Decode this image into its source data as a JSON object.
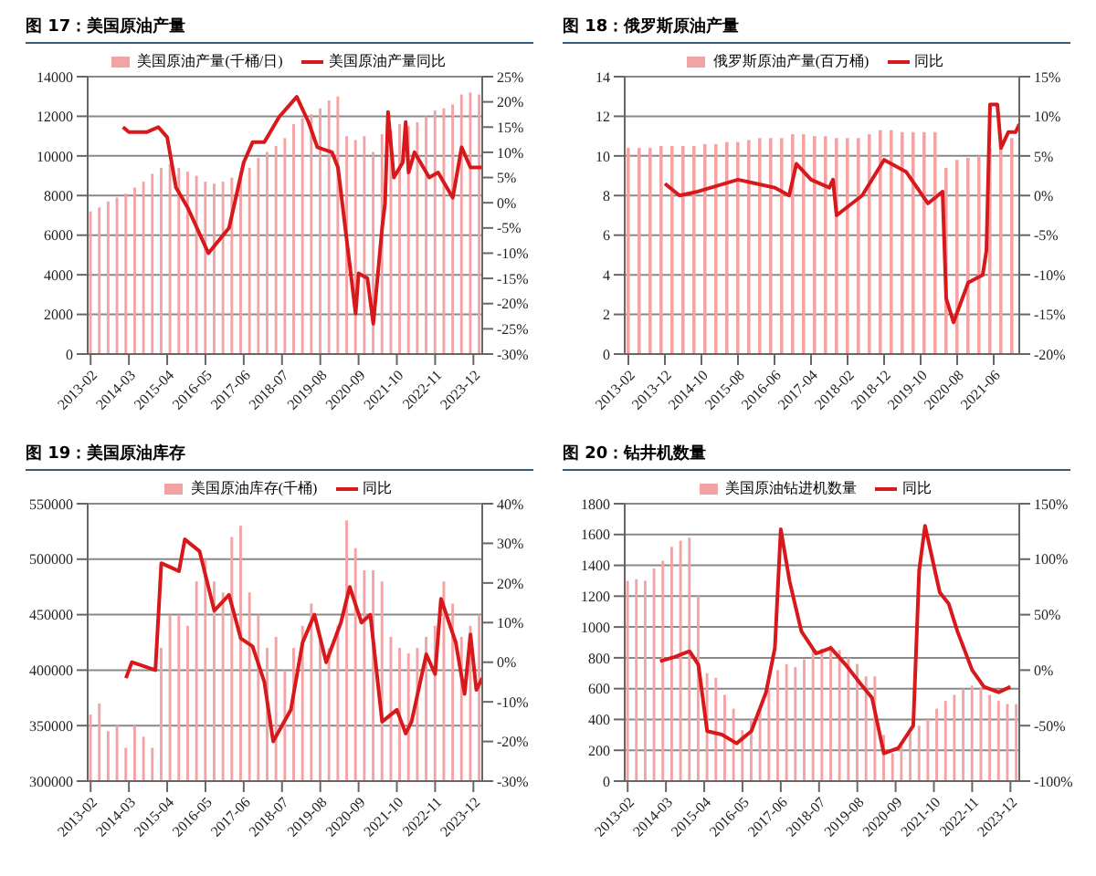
{
  "chart_data": [
    {
      "type": "bar",
      "title": "图 17：美国原油产量",
      "legend": "top",
      "grid": "y",
      "marker": "none",
      "line_style": "solid",
      "xlim": [
        "2013-01",
        "2024-03"
      ],
      "xticks": [
        "2013-02",
        "2014-03",
        "2015-04",
        "2016-05",
        "2017-06",
        "2018-07",
        "2019-08",
        "2020-09",
        "2021-10",
        "2022-11",
        "2023-12"
      ],
      "ylim": [
        0,
        14000
      ],
      "yticks": [
        0,
        2000,
        4000,
        6000,
        8000,
        10000,
        12000,
        14000
      ],
      "y2lim": [
        -30,
        25
      ],
      "y2ticks": [
        {
          "value": -30,
          "label": "-30%"
        },
        {
          "value": -25,
          "label": "-25%"
        },
        {
          "value": -20,
          "label": "-20%"
        },
        {
          "value": -15,
          "label": "-15%"
        },
        {
          "value": -10,
          "label": "-10%"
        },
        {
          "value": -5,
          "label": "-5%"
        },
        {
          "value": 0,
          "label": "0%"
        },
        {
          "value": 5,
          "label": "5%"
        },
        {
          "value": 10,
          "label": "10%"
        },
        {
          "value": 15,
          "label": "15%"
        },
        {
          "value": 20,
          "label": "20%"
        },
        {
          "value": 25,
          "label": "25%"
        }
      ],
      "series": [
        {
          "name": "美国原油产量(千桶/日)",
          "color": "#f4a3a5",
          "x": [
            "2013-02",
            "2013-05",
            "2013-08",
            "2013-11",
            "2014-02",
            "2014-05",
            "2014-08",
            "2014-11",
            "2015-02",
            "2015-05",
            "2015-08",
            "2015-11",
            "2016-02",
            "2016-05",
            "2016-08",
            "2016-11",
            "2017-02",
            "2017-05",
            "2017-08",
            "2017-11",
            "2018-02",
            "2018-05",
            "2018-08",
            "2018-11",
            "2019-02",
            "2019-05",
            "2019-08",
            "2019-11",
            "2020-02",
            "2020-05",
            "2020-08",
            "2020-11",
            "2021-02",
            "2021-05",
            "2021-08",
            "2021-11",
            "2022-02",
            "2022-05",
            "2022-08",
            "2022-11",
            "2023-02",
            "2023-05",
            "2023-08",
            "2023-11",
            "2024-02"
          ],
          "values": [
            7200,
            7400,
            7700,
            7900,
            8100,
            8400,
            8700,
            9100,
            9400,
            9600,
            9400,
            9200,
            9000,
            8700,
            8600,
            8700,
            8900,
            9200,
            9400,
            9900,
            10200,
            10500,
            10900,
            11600,
            11900,
            12100,
            12400,
            12800,
            13000,
            11000,
            10800,
            11000,
            10200,
            11100,
            11300,
            11600,
            11500,
            11700,
            12000,
            12300,
            12400,
            12600,
            13100,
            13200,
            13100
          ]
        },
        {
          "name": "美国原油产量同比",
          "type": "line",
          "axis": "y2",
          "color": "#d7191c",
          "x": [
            "2014-01",
            "2014-03",
            "2014-09",
            "2015-01",
            "2015-04",
            "2015-07",
            "2015-11",
            "2016-06",
            "2017-01",
            "2017-06",
            "2017-09",
            "2018-01",
            "2018-06",
            "2018-12",
            "2019-04",
            "2019-07",
            "2019-12",
            "2020-02",
            "2020-08",
            "2020-09",
            "2020-12",
            "2021-02",
            "2021-05",
            "2021-06",
            "2021-07",
            "2021-09",
            "2021-12",
            "2022-01",
            "2022-02",
            "2022-04",
            "2022-09",
            "2022-12",
            "2023-05",
            "2023-08",
            "2023-11",
            "2024-03"
          ],
          "values": [
            15,
            14,
            14,
            15,
            13,
            3,
            -1,
            -10,
            -5,
            8,
            12,
            12,
            17,
            21,
            16,
            11,
            10,
            7,
            -22,
            -14,
            -15,
            -24,
            -5,
            0,
            18,
            5,
            8,
            16,
            6,
            10,
            5,
            6,
            1,
            11,
            7,
            7
          ]
        }
      ]
    },
    {
      "type": "bar",
      "title": "图 18：俄罗斯原油产量",
      "legend": "top",
      "grid": "y",
      "marker": "none",
      "line_style": "solid",
      "xlim": [
        "2013-01",
        "2022-01"
      ],
      "xticks": [
        "2013-02",
        "2013-12",
        "2014-10",
        "2015-08",
        "2016-06",
        "2017-04",
        "2018-02",
        "2018-12",
        "2019-10",
        "2020-08",
        "2021-06"
      ],
      "ylim": [
        0,
        14
      ],
      "yticks": [
        0,
        2,
        4,
        6,
        8,
        10,
        12,
        14
      ],
      "y2lim": [
        -20,
        15
      ],
      "y2ticks": [
        {
          "value": -20,
          "label": "-20%"
        },
        {
          "value": -15,
          "label": "-15%"
        },
        {
          "value": -10,
          "label": "-10%"
        },
        {
          "value": -5,
          "label": "-5%"
        },
        {
          "value": 0,
          "label": "0%"
        },
        {
          "value": 5,
          "label": "5%"
        },
        {
          "value": 10,
          "label": "10%"
        },
        {
          "value": 15,
          "label": "15%"
        }
      ],
      "series": [
        {
          "name": "俄罗斯原油产量(百万桶)",
          "color": "#f4a3a5",
          "x": [
            "2013-02",
            "2013-05",
            "2013-08",
            "2013-11",
            "2014-02",
            "2014-05",
            "2014-08",
            "2014-11",
            "2015-02",
            "2015-05",
            "2015-08",
            "2015-11",
            "2016-02",
            "2016-05",
            "2016-08",
            "2016-11",
            "2017-02",
            "2017-05",
            "2017-08",
            "2017-11",
            "2018-02",
            "2018-05",
            "2018-08",
            "2018-11",
            "2019-02",
            "2019-05",
            "2019-08",
            "2019-11",
            "2020-02",
            "2020-05",
            "2020-08",
            "2020-11",
            "2021-02",
            "2021-05",
            "2021-08",
            "2021-11"
          ],
          "values": [
            10.4,
            10.4,
            10.4,
            10.5,
            10.5,
            10.5,
            10.5,
            10.6,
            10.6,
            10.7,
            10.7,
            10.8,
            10.9,
            10.9,
            10.9,
            11.1,
            11.1,
            11.0,
            11.0,
            10.9,
            10.9,
            10.9,
            11.1,
            11.3,
            11.3,
            11.2,
            11.2,
            11.2,
            11.2,
            9.4,
            9.8,
            9.9,
            10.0,
            10.4,
            10.6,
            10.9
          ]
        },
        {
          "name": "同比",
          "type": "line",
          "axis": "y2",
          "color": "#d7191c",
          "x": [
            "2013-12",
            "2014-04",
            "2014-09",
            "2015-08",
            "2016-01",
            "2016-06",
            "2016-10",
            "2016-12",
            "2017-04",
            "2017-09",
            "2017-10",
            "2017-11",
            "2018-06",
            "2018-12",
            "2019-06",
            "2019-12",
            "2020-04",
            "2020-05",
            "2020-07",
            "2020-11",
            "2021-03",
            "2021-04",
            "2021-05",
            "2021-07",
            "2021-08",
            "2021-10",
            "2021-12",
            "2022-01"
          ],
          "values": [
            1.5,
            0,
            0.5,
            2,
            1.5,
            1,
            0,
            4,
            2,
            1,
            2,
            -2.5,
            0,
            4.5,
            3,
            -1,
            0.5,
            -13,
            -16,
            -11,
            -10,
            -7,
            11.5,
            11.5,
            6,
            8,
            8,
            9
          ]
        }
      ]
    },
    {
      "type": "bar",
      "title": "图 19：美国原油库存",
      "legend": "top",
      "grid": "y",
      "marker": "none",
      "line_style": "solid",
      "xlim": [
        "2013-01",
        "2024-03"
      ],
      "xticks": [
        "2013-02",
        "2014-03",
        "2015-04",
        "2016-05",
        "2017-06",
        "2018-07",
        "2019-08",
        "2020-09",
        "2021-10",
        "2022-11",
        "2023-12"
      ],
      "ylim": [
        300000,
        550000
      ],
      "yticks": [
        300000,
        350000,
        400000,
        450000,
        500000,
        550000
      ],
      "y2lim": [
        -30,
        40
      ],
      "y2ticks": [
        {
          "value": -30,
          "label": "-30%"
        },
        {
          "value": -20,
          "label": "-20%"
        },
        {
          "value": -10,
          "label": "-10%"
        },
        {
          "value": 0,
          "label": "0%"
        },
        {
          "value": 10,
          "label": "10%"
        },
        {
          "value": 20,
          "label": "20%"
        },
        {
          "value": 30,
          "label": "30%"
        },
        {
          "value": 40,
          "label": "40%"
        }
      ],
      "series": [
        {
          "name": "美国原油库存(千桶)",
          "color": "#f4a3a5",
          "x": [
            "2013-02",
            "2013-05",
            "2013-08",
            "2013-11",
            "2014-02",
            "2014-05",
            "2014-08",
            "2014-11",
            "2015-02",
            "2015-05",
            "2015-08",
            "2015-11",
            "2016-02",
            "2016-05",
            "2016-08",
            "2016-11",
            "2017-02",
            "2017-05",
            "2017-08",
            "2017-11",
            "2018-02",
            "2018-05",
            "2018-08",
            "2018-11",
            "2019-02",
            "2019-05",
            "2019-08",
            "2019-11",
            "2020-02",
            "2020-05",
            "2020-08",
            "2020-11",
            "2021-02",
            "2021-05",
            "2021-08",
            "2021-11",
            "2022-02",
            "2022-05",
            "2022-08",
            "2022-11",
            "2023-02",
            "2023-05",
            "2023-08",
            "2023-11",
            "2024-02"
          ],
          "values": [
            360000,
            370000,
            345000,
            350000,
            330000,
            350000,
            340000,
            330000,
            420000,
            450000,
            450000,
            440000,
            480000,
            500000,
            480000,
            470000,
            520000,
            530000,
            470000,
            450000,
            420000,
            430000,
            400000,
            420000,
            440000,
            460000,
            430000,
            420000,
            440000,
            535000,
            510000,
            490000,
            490000,
            480000,
            430000,
            420000,
            415000,
            420000,
            430000,
            440000,
            480000,
            460000,
            430000,
            440000,
            450000
          ]
        },
        {
          "name": "同比",
          "type": "line",
          "axis": "y2",
          "color": "#d7191c",
          "x": [
            "2014-02",
            "2014-04",
            "2014-12",
            "2015-02",
            "2015-08",
            "2015-10",
            "2016-03",
            "2016-08",
            "2017-01",
            "2017-05",
            "2017-09",
            "2018-01",
            "2018-04",
            "2018-10",
            "2019-02",
            "2019-06",
            "2019-10",
            "2020-03",
            "2020-06",
            "2020-10",
            "2021-01",
            "2021-05",
            "2021-10",
            "2022-01",
            "2022-03",
            "2022-08",
            "2022-11",
            "2023-01",
            "2023-06",
            "2023-09",
            "2023-11",
            "2024-01",
            "2024-03"
          ],
          "values": [
            -4,
            0,
            -2,
            25,
            23,
            31,
            28,
            13,
            17,
            6,
            4,
            -5,
            -20,
            -12,
            5,
            12,
            0,
            10,
            19,
            10,
            12,
            -15,
            -12,
            -18,
            -15,
            2,
            -3,
            16,
            5,
            -8,
            7,
            -7,
            -4
          ]
        }
      ]
    },
    {
      "type": "bar",
      "title": "图 20：钻井机数量",
      "legend": "top",
      "grid": "y",
      "marker": "none",
      "line_style": "solid",
      "xlim": [
        "2013-01",
        "2024-03"
      ],
      "xticks": [
        "2013-02",
        "2014-03",
        "2015-04",
        "2016-05",
        "2017-06",
        "2018-07",
        "2019-08",
        "2020-09",
        "2021-10",
        "2022-11",
        "2023-12"
      ],
      "ylim": [
        0,
        1800
      ],
      "yticks": [
        0,
        200,
        400,
        600,
        800,
        1000,
        1200,
        1400,
        1600,
        1800
      ],
      "y2lim": [
        -100,
        150
      ],
      "y2ticks": [
        {
          "value": -100,
          "label": "-100%"
        },
        {
          "value": -50,
          "label": "-50%"
        },
        {
          "value": 0,
          "label": "0%"
        },
        {
          "value": 50,
          "label": "50%"
        },
        {
          "value": 100,
          "label": "100%"
        },
        {
          "value": 150,
          "label": "150%"
        }
      ],
      "series": [
        {
          "name": "美国原油钻进机数量",
          "color": "#f4a3a5",
          "x": [
            "2013-02",
            "2013-05",
            "2013-08",
            "2013-11",
            "2014-02",
            "2014-05",
            "2014-08",
            "2014-11",
            "2015-02",
            "2015-05",
            "2015-08",
            "2015-11",
            "2016-02",
            "2016-05",
            "2016-08",
            "2016-11",
            "2017-02",
            "2017-05",
            "2017-08",
            "2017-11",
            "2018-02",
            "2018-05",
            "2018-08",
            "2018-11",
            "2019-02",
            "2019-05",
            "2019-08",
            "2019-11",
            "2020-02",
            "2020-05",
            "2020-08",
            "2020-11",
            "2021-02",
            "2021-05",
            "2021-08",
            "2021-11",
            "2022-02",
            "2022-05",
            "2022-08",
            "2022-11",
            "2023-02",
            "2023-05",
            "2023-08",
            "2023-11",
            "2024-02"
          ],
          "values": [
            1300,
            1310,
            1300,
            1380,
            1430,
            1520,
            1560,
            1580,
            1200,
            700,
            670,
            560,
            470,
            330,
            400,
            470,
            600,
            720,
            760,
            740,
            790,
            850,
            860,
            880,
            850,
            800,
            760,
            680,
            680,
            300,
            180,
            240,
            310,
            360,
            400,
            470,
            520,
            560,
            600,
            620,
            610,
            560,
            520,
            500,
            500
          ]
        },
        {
          "name": "同比",
          "type": "line",
          "axis": "y2",
          "color": "#d7191c",
          "x": [
            "2014-01",
            "2014-06",
            "2014-11",
            "2015-02",
            "2015-05",
            "2015-10",
            "2016-03",
            "2016-08",
            "2017-01",
            "2017-04",
            "2017-06",
            "2017-09",
            "2018-01",
            "2018-06",
            "2018-11",
            "2019-04",
            "2019-09",
            "2020-01",
            "2020-05",
            "2020-10",
            "2021-03",
            "2021-05",
            "2021-07",
            "2021-12",
            "2022-03",
            "2022-06",
            "2022-11",
            "2023-03",
            "2023-08",
            "2023-12"
          ],
          "values": [
            8,
            12,
            17,
            5,
            -55,
            -58,
            -66,
            -55,
            -20,
            20,
            127,
            80,
            35,
            15,
            20,
            5,
            -12,
            -25,
            -75,
            -70,
            -50,
            90,
            130,
            70,
            60,
            35,
            0,
            -15,
            -20,
            -15
          ]
        }
      ]
    }
  ]
}
